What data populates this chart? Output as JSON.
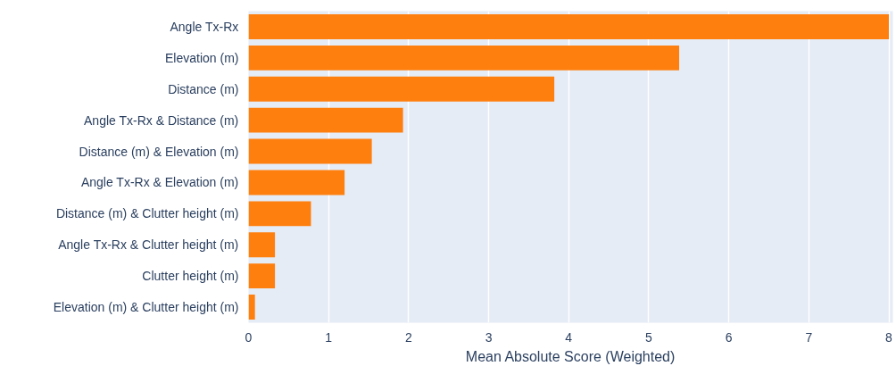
{
  "chart_data": {
    "type": "bar",
    "orientation": "horizontal",
    "xlabel": "Mean Absolute Score (Weighted)",
    "categories": [
      "Angle Tx-Rx",
      "Elevation (m)",
      "Distance (m)",
      "Angle Tx-Rx & Distance (m)",
      "Distance (m) & Elevation (m)",
      "Angle Tx-Rx & Elevation (m)",
      "Distance (m) & Clutter height (m)",
      "Angle Tx-Rx & Clutter height (m)",
      "Clutter height (m)",
      "Elevation (m) & Clutter height (m)"
    ],
    "values": [
      8.0,
      5.38,
      3.82,
      1.93,
      1.54,
      1.2,
      0.78,
      0.33,
      0.33,
      0.08
    ],
    "color": "#ff7f0e",
    "xlim": [
      0,
      8.05
    ],
    "xticks": [
      0,
      1,
      2,
      3,
      4,
      5,
      6,
      7,
      8
    ],
    "grid": "x"
  }
}
